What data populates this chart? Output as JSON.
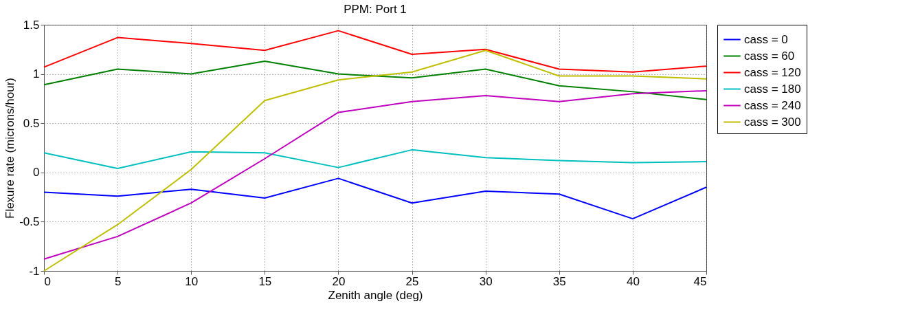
{
  "chart_data": {
    "type": "line",
    "title": "PPM: Port 1",
    "xlabel": "Zenith angle (deg)",
    "ylabel": "Flexure rate (microns/hour)",
    "x": [
      0,
      5,
      10,
      15,
      20,
      25,
      30,
      35,
      40,
      45
    ],
    "series": [
      {
        "name": "cass = 0",
        "color": "#0000ff",
        "values": [
          -0.2,
          -0.24,
          -0.17,
          -0.26,
          -0.06,
          -0.31,
          -0.19,
          -0.22,
          -0.47,
          -0.15
        ]
      },
      {
        "name": "cass = 60",
        "color": "#008000",
        "values": [
          0.89,
          1.05,
          1.0,
          1.13,
          1.0,
          0.96,
          1.05,
          0.88,
          0.82,
          0.74
        ]
      },
      {
        "name": "cass = 120",
        "color": "#ff0000",
        "values": [
          1.07,
          1.37,
          1.31,
          1.24,
          1.44,
          1.2,
          1.25,
          1.05,
          1.02,
          1.08
        ]
      },
      {
        "name": "cass = 180",
        "color": "#00bfbf",
        "values": [
          0.2,
          0.04,
          0.21,
          0.2,
          0.05,
          0.23,
          0.15,
          0.12,
          0.1,
          0.11
        ]
      },
      {
        "name": "cass = 240",
        "color": "#bf00bf",
        "values": [
          -0.88,
          -0.65,
          -0.31,
          0.14,
          0.61,
          0.72,
          0.78,
          0.72,
          0.8,
          0.83
        ]
      },
      {
        "name": "cass = 300",
        "color": "#bfbf00",
        "values": [
          -1.0,
          -0.53,
          0.03,
          0.73,
          0.94,
          1.02,
          1.24,
          0.98,
          0.98,
          0.95
        ]
      }
    ],
    "xlim": [
      0,
      45
    ],
    "xticks": [
      0,
      5,
      10,
      15,
      20,
      25,
      30,
      35,
      40,
      45
    ],
    "ylim": [
      -1,
      1.5
    ],
    "yticks": [
      -1,
      -0.5,
      0,
      0.5,
      1,
      1.5
    ],
    "grid": true,
    "legend": "top right",
    "marker": "none",
    "line_style": "solid"
  }
}
